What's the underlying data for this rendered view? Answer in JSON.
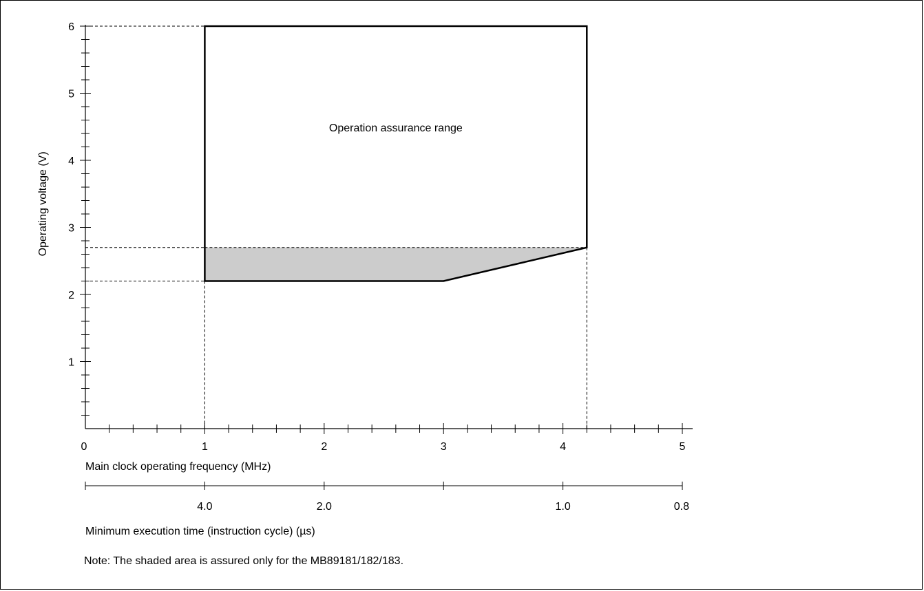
{
  "chart_data": {
    "type": "area",
    "title": "",
    "xlabel": "Main clock operating frequency (MHz)",
    "ylabel": "Operating voltage (V)",
    "xlim": [
      0,
      5
    ],
    "ylim": [
      0,
      6
    ],
    "x_ticks": [
      "0",
      "1",
      "2",
      "3",
      "4",
      "5"
    ],
    "y_ticks": [
      "1",
      "2",
      "3",
      "4",
      "5",
      "6"
    ],
    "grid": false,
    "region_outline": {
      "x": [
        1.0,
        1.0,
        4.2,
        4.2,
        3.0,
        1.0
      ],
      "y": [
        2.2,
        6.0,
        6.0,
        2.7,
        2.2,
        2.2
      ]
    },
    "shaded_region": {
      "x": [
        1.0,
        1.0,
        4.2,
        3.0
      ],
      "y": [
        2.2,
        2.7,
        2.7,
        2.2
      ]
    },
    "reference_lines": {
      "horizontal": [
        6.0,
        2.7,
        2.2
      ],
      "vertical": [
        1.0,
        4.2
      ]
    },
    "region_label": "Operation assurance range",
    "secondary_axis": {
      "label": "Minimum execution time (instruction cycle) (µs)",
      "ticks": [
        {
          "freq": 1.0,
          "label": "4.0"
        },
        {
          "freq": 2.0,
          "label": "2.0"
        },
        {
          "freq": 4.0,
          "label": "1.0"
        },
        {
          "freq": 5.0,
          "label": "0.8"
        }
      ],
      "unlabeled_tick_freqs": [
        0.0,
        3.0
      ]
    },
    "note": "Note: The shaded area is assured only for the MB89181/182/183.",
    "colors": {
      "shade": "#cccccc",
      "line": "#000000"
    }
  }
}
